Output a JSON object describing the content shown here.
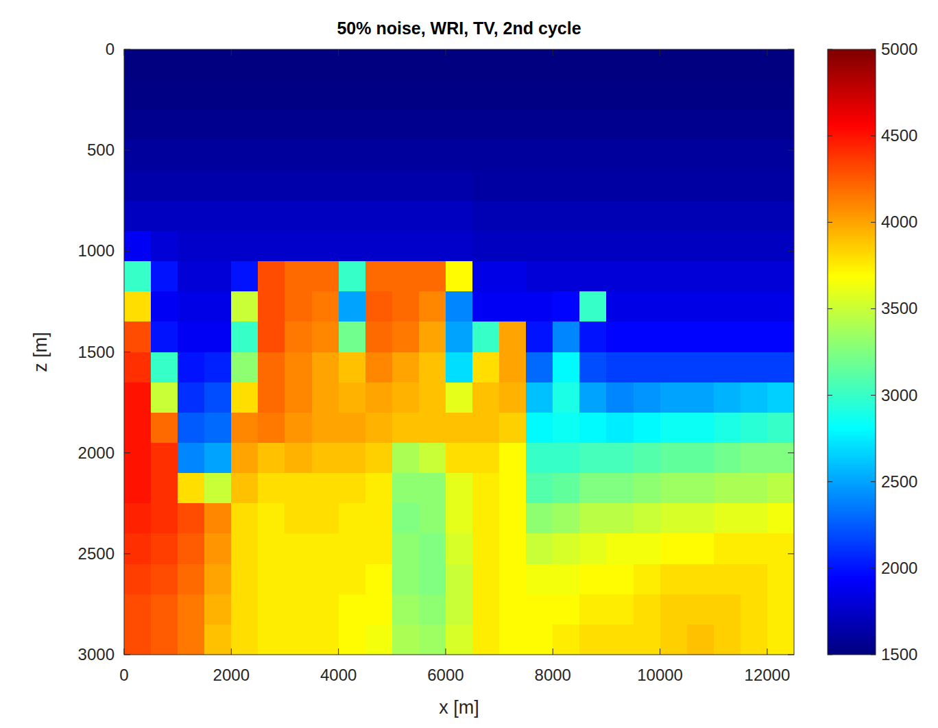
{
  "chart_data": {
    "type": "heatmap",
    "title": "50% noise, WRI, TV, 2nd cycle",
    "xlabel": "x [m]",
    "ylabel": "z [m]",
    "xlim": [
      0,
      12500
    ],
    "ylim": [
      3000,
      0
    ],
    "xticks": [
      0,
      2000,
      4000,
      6000,
      8000,
      10000,
      12000
    ],
    "yticks": [
      0,
      500,
      1000,
      1500,
      2000,
      2500,
      3000
    ],
    "colorbar_range": [
      1500,
      5000
    ],
    "colorbar_ticks": [
      1500,
      2000,
      2500,
      3000,
      3500,
      4000,
      4500,
      5000
    ],
    "x": [
      250,
      750,
      1250,
      1750,
      2250,
      2750,
      3250,
      3750,
      4250,
      4750,
      5250,
      5750,
      6250,
      6750,
      7250,
      7750,
      8250,
      8750,
      9250,
      9750,
      10250,
      10750,
      11250,
      11750,
      12250
    ],
    "y": [
      75,
      225,
      375,
      525,
      675,
      825,
      975,
      1125,
      1275,
      1425,
      1575,
      1725,
      1875,
      2025,
      2175,
      2325,
      2475,
      2625,
      2775,
      2925
    ],
    "values": [
      [
        1500,
        1500,
        1500,
        1500,
        1500,
        1500,
        1500,
        1500,
        1500,
        1500,
        1500,
        1500,
        1500,
        1500,
        1500,
        1500,
        1500,
        1500,
        1500,
        1500,
        1500,
        1500,
        1500,
        1500,
        1500
      ],
      [
        1520,
        1520,
        1520,
        1520,
        1520,
        1520,
        1520,
        1520,
        1520,
        1520,
        1520,
        1520,
        1520,
        1520,
        1520,
        1520,
        1520,
        1520,
        1520,
        1520,
        1520,
        1520,
        1520,
        1520,
        1520
      ],
      [
        1550,
        1550,
        1550,
        1550,
        1550,
        1550,
        1550,
        1550,
        1550,
        1550,
        1550,
        1550,
        1550,
        1550,
        1550,
        1550,
        1550,
        1550,
        1550,
        1550,
        1550,
        1550,
        1550,
        1550,
        1550
      ],
      [
        1600,
        1600,
        1600,
        1600,
        1600,
        1600,
        1600,
        1600,
        1600,
        1600,
        1600,
        1600,
        1600,
        1600,
        1600,
        1600,
        1600,
        1600,
        1600,
        1600,
        1600,
        1600,
        1600,
        1600,
        1600
      ],
      [
        1650,
        1650,
        1650,
        1650,
        1650,
        1650,
        1650,
        1650,
        1650,
        1650,
        1650,
        1650,
        1650,
        1620,
        1620,
        1620,
        1620,
        1620,
        1620,
        1620,
        1620,
        1620,
        1620,
        1620,
        1620
      ],
      [
        1720,
        1720,
        1720,
        1720,
        1720,
        1720,
        1720,
        1720,
        1720,
        1720,
        1720,
        1720,
        1720,
        1680,
        1680,
        1680,
        1680,
        1680,
        1680,
        1680,
        1680,
        1680,
        1680,
        1680,
        1680
      ],
      [
        1900,
        1800,
        1760,
        1760,
        1760,
        1760,
        1760,
        1760,
        1760,
        1760,
        1760,
        1760,
        1760,
        1720,
        1720,
        1720,
        1720,
        1720,
        1720,
        1720,
        1720,
        1720,
        1720,
        1720,
        1720
      ],
      [
        3000,
        2000,
        1800,
        1800,
        2000,
        4300,
        4200,
        4200,
        3000,
        4200,
        4200,
        4200,
        3700,
        1850,
        1850,
        1800,
        1800,
        1800,
        1800,
        1800,
        1800,
        1800,
        1800,
        1800,
        1800
      ],
      [
        3800,
        1900,
        1850,
        1850,
        3500,
        4300,
        4200,
        4150,
        2500,
        4250,
        4200,
        4100,
        2400,
        1900,
        1900,
        1900,
        1950,
        3000,
        1850,
        1850,
        1850,
        1850,
        1850,
        1850,
        1850
      ],
      [
        4300,
        2000,
        1900,
        1900,
        3000,
        4300,
        4150,
        4100,
        3200,
        4200,
        4150,
        4000,
        2500,
        3000,
        4000,
        2000,
        2400,
        2000,
        1950,
        1950,
        1950,
        1950,
        1950,
        1950,
        1950
      ],
      [
        4400,
        3000,
        2000,
        2050,
        3300,
        4200,
        4100,
        4000,
        3900,
        4100,
        4000,
        3900,
        2700,
        3800,
        4000,
        2300,
        2800,
        2200,
        2150,
        2150,
        2150,
        2150,
        2150,
        2150,
        2150
      ],
      [
        4500,
        3500,
        2100,
        2200,
        3800,
        4200,
        4100,
        4000,
        3950,
        4000,
        3950,
        3900,
        3600,
        3900,
        3950,
        2600,
        2900,
        2500,
        2400,
        2450,
        2500,
        2500,
        2550,
        2600,
        2650
      ],
      [
        4500,
        4200,
        2250,
        2300,
        4100,
        4150,
        4050,
        4000,
        4000,
        3950,
        3900,
        3900,
        3900,
        3900,
        3850,
        2800,
        2850,
        2800,
        2750,
        2800,
        2850,
        2850,
        2900,
        2950,
        3000
      ],
      [
        4500,
        4400,
        2400,
        2500,
        4000,
        3900,
        3950,
        3900,
        3900,
        3850,
        3400,
        3500,
        3800,
        3800,
        3700,
        3000,
        3000,
        3050,
        3050,
        3100,
        3150,
        3150,
        3200,
        3250,
        3250
      ],
      [
        4500,
        4400,
        3800,
        3500,
        3900,
        3800,
        3800,
        3800,
        3800,
        3750,
        3300,
        3300,
        3600,
        3750,
        3700,
        3100,
        3150,
        3250,
        3250,
        3300,
        3350,
        3350,
        3400,
        3400,
        3450
      ],
      [
        4450,
        4400,
        4300,
        4100,
        3800,
        3750,
        3800,
        3800,
        3750,
        3750,
        3250,
        3300,
        3600,
        3750,
        3700,
        3300,
        3350,
        3450,
        3450,
        3500,
        3550,
        3550,
        3600,
        3600,
        3650
      ],
      [
        4400,
        4350,
        4250,
        4050,
        3800,
        3750,
        3750,
        3750,
        3750,
        3750,
        3300,
        3250,
        3550,
        3750,
        3700,
        3500,
        3550,
        3600,
        3650,
        3650,
        3700,
        3700,
        3750,
        3750,
        3750
      ],
      [
        4350,
        4300,
        4200,
        4000,
        3800,
        3750,
        3750,
        3750,
        3750,
        3700,
        3300,
        3250,
        3500,
        3750,
        3700,
        3650,
        3650,
        3700,
        3700,
        3750,
        3800,
        3800,
        3800,
        3800,
        3750
      ],
      [
        4300,
        4250,
        4150,
        3950,
        3800,
        3750,
        3750,
        3750,
        3700,
        3700,
        3350,
        3300,
        3500,
        3750,
        3700,
        3700,
        3700,
        3750,
        3750,
        3800,
        3850,
        3850,
        3850,
        3800,
        3750
      ],
      [
        4300,
        4250,
        4150,
        3900,
        3800,
        3750,
        3750,
        3750,
        3700,
        3650,
        3400,
        3350,
        3550,
        3750,
        3700,
        3700,
        3750,
        3800,
        3800,
        3800,
        3850,
        3900,
        3850,
        3800,
        3750
      ]
    ]
  }
}
